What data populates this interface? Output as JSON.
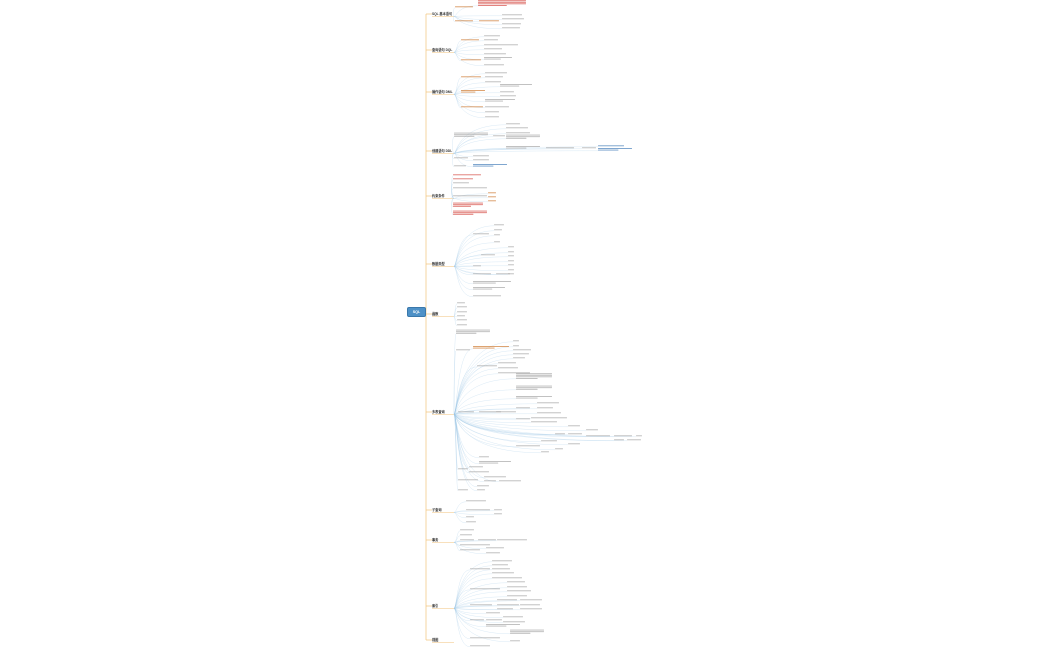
{
  "root": {
    "label": "SQL"
  },
  "colors": {
    "root_fill": "#4e91c7",
    "branch_line": "#f2c27a",
    "sub_line": "#9cc4e4",
    "text_dark": "#333333",
    "text_red": "#d0342c",
    "text_blue": "#2f6fb0",
    "text_orange": "#c86a18"
  },
  "branches": [
    {
      "label": "SQL 基本语句"
    },
    {
      "label": "查询语句 DQL"
    },
    {
      "label": "操作语句 DML"
    },
    {
      "label": "创建语句 DDL"
    },
    {
      "label": "约束条件"
    },
    {
      "label": "数据类型"
    },
    {
      "label": "函数"
    },
    {
      "label": "多表查询"
    },
    {
      "label": "子查询"
    },
    {
      "label": "事务"
    },
    {
      "label": "索引"
    },
    {
      "label": "视图"
    }
  ]
}
